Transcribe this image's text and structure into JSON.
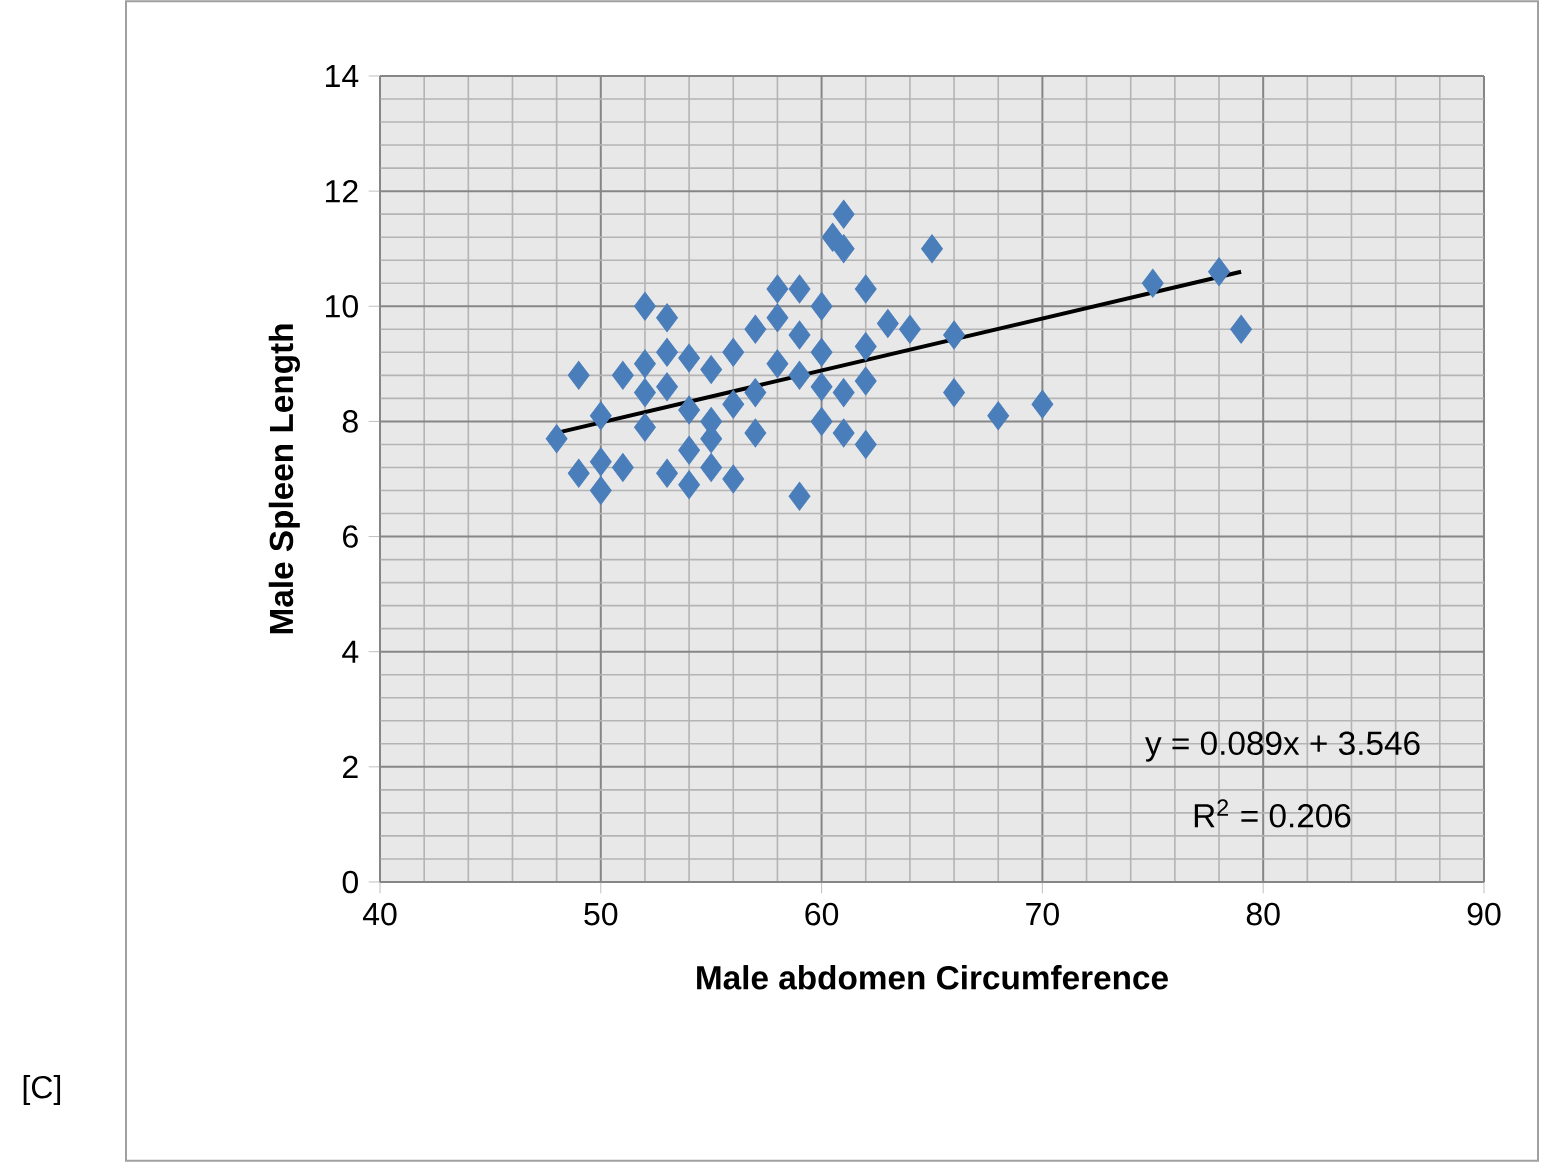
{
  "chart_data": {
    "type": "scatter",
    "xlabel": "Male abdomen Circumference",
    "ylabel": "Male Spleen Length",
    "xlim": [
      40,
      90
    ],
    "ylim": [
      0,
      14
    ],
    "xticks": [
      40,
      50,
      60,
      70,
      80,
      90
    ],
    "yticks": [
      0,
      2,
      4,
      6,
      8,
      10,
      12,
      14
    ],
    "grid": true,
    "marker": "diamond",
    "series": [
      {
        "color": "#4a7ebb",
        "x": [
          48,
          49,
          49,
          50,
          50,
          50,
          51,
          51,
          52,
          52,
          52,
          52,
          53,
          53,
          53,
          53,
          54,
          54,
          54,
          54,
          55,
          55,
          55,
          55,
          56,
          56,
          56,
          57,
          57,
          57,
          58,
          58,
          58,
          59,
          59,
          59,
          59,
          60,
          60,
          60,
          60,
          60.5,
          61,
          61,
          61,
          61,
          62,
          62,
          62,
          62,
          63,
          64,
          65,
          66,
          66,
          68,
          70,
          75,
          78,
          79
        ],
        "values": [
          7.7,
          8.8,
          7.1,
          6.8,
          7.3,
          8.1,
          7.2,
          8.8,
          10.0,
          9.0,
          7.9,
          8.5,
          9.8,
          9.2,
          7.1,
          8.6,
          6.9,
          7.5,
          8.2,
          9.1,
          7.2,
          8.0,
          8.9,
          7.7,
          7.0,
          8.3,
          9.2,
          8.5,
          9.6,
          7.8,
          10.3,
          9.8,
          9.0,
          10.3,
          9.5,
          6.7,
          8.8,
          10.0,
          9.2,
          8.0,
          8.6,
          11.2,
          11.6,
          11.0,
          8.5,
          7.8,
          10.3,
          9.3,
          8.7,
          7.6,
          9.7,
          9.6,
          11.0,
          9.5,
          8.5,
          8.1,
          8.3,
          10.4,
          10.6,
          9.6
        ]
      },
      {
        "type": "line",
        "marker": "none",
        "color": "#000000",
        "x": [
          48,
          79
        ],
        "values": [
          7.8,
          10.6
        ]
      }
    ],
    "annotations": [
      "y = 0.089x + 3.546",
      "R$^{2}$ = 0.206",
      "[C]"
    ]
  }
}
